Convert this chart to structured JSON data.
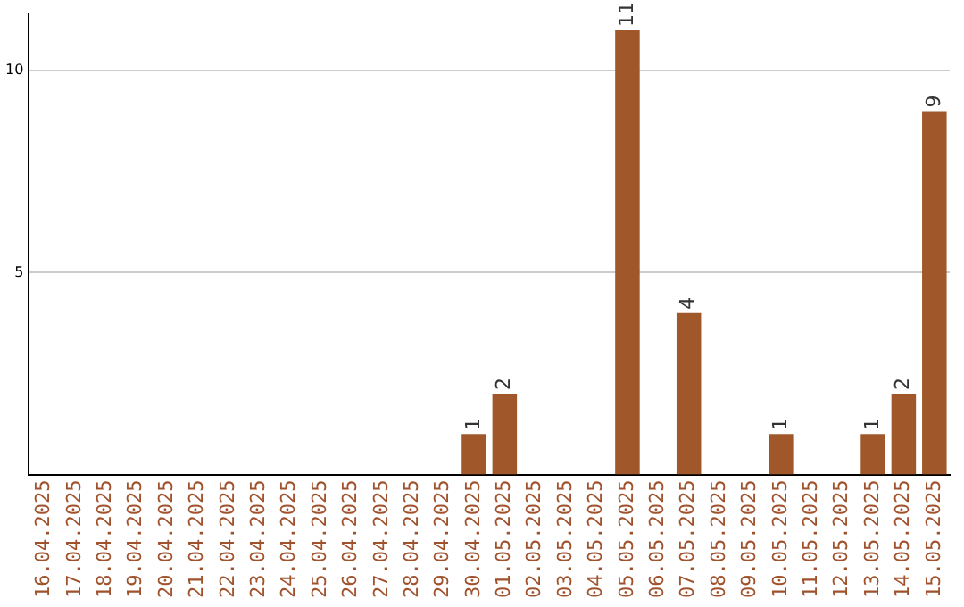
{
  "chart_data": {
    "type": "bar",
    "categories": [
      "16.04.2025",
      "17.04.2025",
      "18.04.2025",
      "19.04.2025",
      "20.04.2025",
      "21.04.2025",
      "22.04.2025",
      "23.04.2025",
      "24.04.2025",
      "25.04.2025",
      "26.04.2025",
      "27.04.2025",
      "28.04.2025",
      "29.04.2025",
      "30.04.2025",
      "01.05.2025",
      "02.05.2025",
      "03.05.2025",
      "04.05.2025",
      "05.05.2025",
      "06.05.2025",
      "07.05.2025",
      "08.05.2025",
      "09.05.2025",
      "10.05.2025",
      "11.05.2025",
      "12.05.2025",
      "13.05.2025",
      "14.05.2025",
      "15.05.2025"
    ],
    "values": [
      0,
      0,
      0,
      0,
      0,
      0,
      0,
      0,
      0,
      0,
      0,
      0,
      0,
      0,
      1,
      2,
      0,
      0,
      0,
      11,
      0,
      4,
      0,
      0,
      1,
      0,
      0,
      1,
      2,
      9
    ],
    "value_labels": [
      null,
      null,
      null,
      null,
      null,
      null,
      null,
      null,
      null,
      null,
      null,
      null,
      null,
      null,
      "1",
      "2",
      null,
      null,
      null,
      "11",
      null,
      "4",
      null,
      null,
      "1",
      null,
      null,
      "1",
      "2",
      "9"
    ],
    "color": "#a0582a",
    "ylim": [
      0,
      11.4
    ],
    "yticks": [
      5,
      10
    ],
    "grid": "y"
  }
}
